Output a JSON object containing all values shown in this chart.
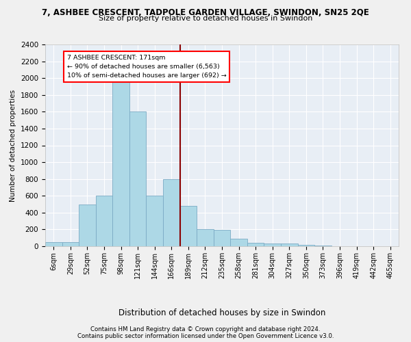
{
  "title_line1": "7, ASHBEE CRESCENT, TADPOLE GARDEN VILLAGE, SWINDON, SN25 2QE",
  "title_line2": "Size of property relative to detached houses in Swindon",
  "xlabel": "Distribution of detached houses by size in Swindon",
  "ylabel": "Number of detached properties",
  "footer_line1": "Contains HM Land Registry data © Crown copyright and database right 2024.",
  "footer_line2": "Contains public sector information licensed under the Open Government Licence v3.0.",
  "bar_labels": [
    "6sqm",
    "29sqm",
    "52sqm",
    "75sqm",
    "98sqm",
    "121sqm",
    "144sqm",
    "166sqm",
    "189sqm",
    "212sqm",
    "235sqm",
    "258sqm",
    "281sqm",
    "304sqm",
    "327sqm",
    "350sqm",
    "373sqm",
    "396sqm",
    "419sqm",
    "442sqm",
    "465sqm"
  ],
  "bar_values": [
    50,
    50,
    500,
    600,
    1950,
    1600,
    600,
    800,
    480,
    200,
    195,
    90,
    40,
    30,
    30,
    15,
    10,
    0,
    0,
    0,
    0
  ],
  "bar_color": "#add8e6",
  "bar_edge_color": "#7baac4",
  "red_line_index": 7,
  "annotation_title": "7 ASHBEE CRESCENT: 171sqm",
  "annotation_line1": "← 90% of detached houses are smaller (6,563)",
  "annotation_line2": "10% of semi-detached houses are larger (692) →",
  "ylim": [
    0,
    2400
  ],
  "yticks": [
    0,
    200,
    400,
    600,
    800,
    1000,
    1200,
    1400,
    1600,
    1800,
    2000,
    2200,
    2400
  ],
  "background_color": "#e8eef5",
  "grid_color": "#ffffff",
  "fig_bg_color": "#f0f0f0"
}
